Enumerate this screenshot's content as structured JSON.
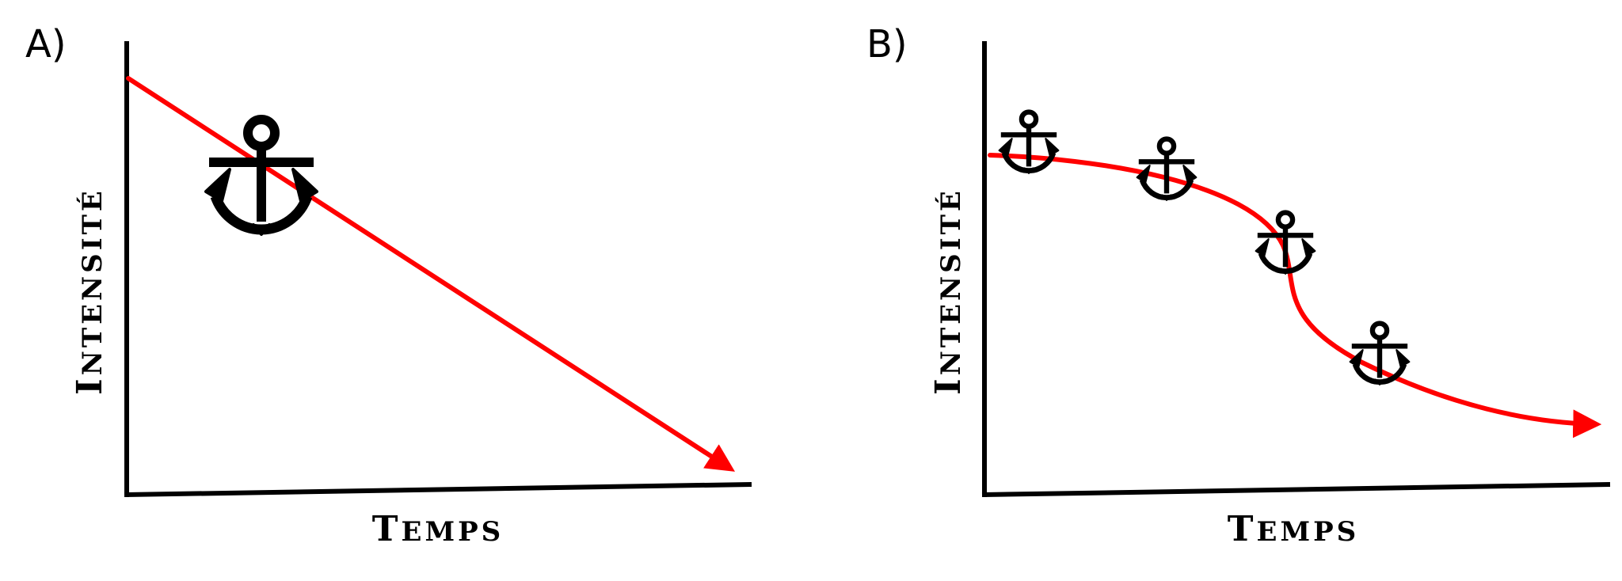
{
  "colors": {
    "curve": "#ff0000",
    "ink": "#000000",
    "background": "#ffffff"
  },
  "icons": {
    "anchor": "anchor-icon"
  },
  "panels": [
    {
      "id": "A",
      "label": "A)",
      "xlabel_first": "T",
      "xlabel_rest": "EMPS",
      "ylabel_first": "I",
      "ylabel_rest": "NTENSITÉ",
      "curve_shape": "straight-decline",
      "anchor_count": 1
    },
    {
      "id": "B",
      "label": "B)",
      "xlabel_first": "T",
      "xlabel_rest": "EMPS",
      "ylabel_first": "I",
      "ylabel_rest": "NTENSITÉ",
      "curve_shape": "sigmoid-decline",
      "anchor_count": 4
    }
  ]
}
